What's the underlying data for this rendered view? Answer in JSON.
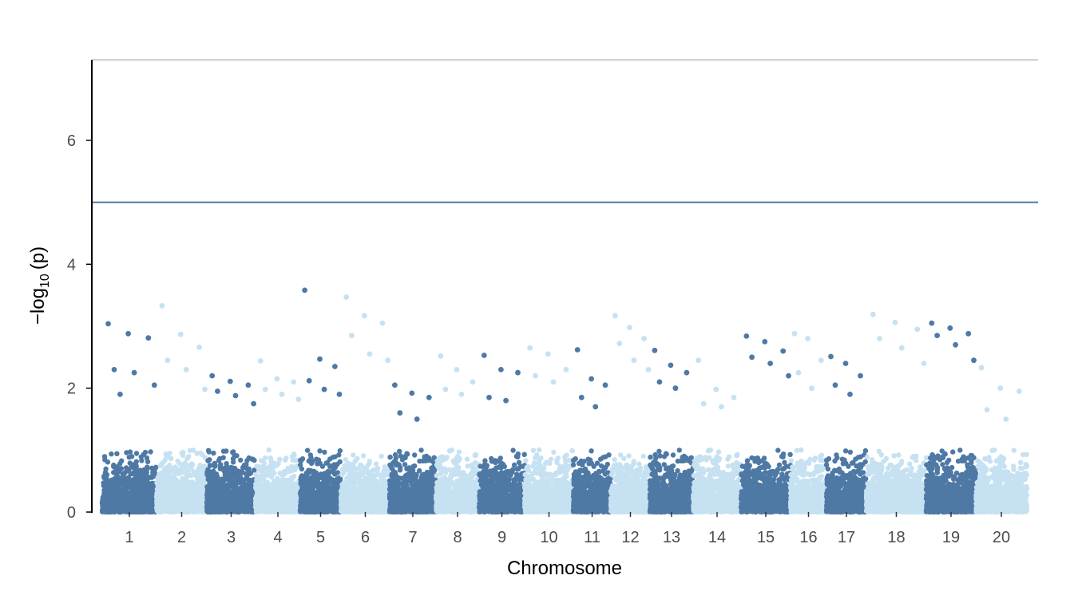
{
  "chart_data": {
    "type": "scatter",
    "subtype": "manhattan",
    "title": "",
    "xlabel": "Chromosome",
    "ylabel": {
      "prefix": "−log",
      "subscript": "10",
      "suffix": "(p)"
    },
    "ylim": [
      0,
      7.3
    ],
    "yticks": [
      0,
      2,
      4,
      6
    ],
    "threshold": 5,
    "grid": false,
    "legend": "none",
    "colors": {
      "dark": "#4f79a5",
      "light": "#c6e1f2",
      "threshold_line": "#4f79a5",
      "top_rule": "#b3b3b3",
      "axis": "#000000",
      "tick_label": "#4d4d4d"
    },
    "chromosomes": [
      {
        "label": "1",
        "peak": 3.04,
        "tops": [
          2.88,
          2.81,
          2.3,
          2.25,
          2.05,
          1.9
        ]
      },
      {
        "label": "2",
        "peak": 3.33,
        "tops": [
          2.87,
          2.66,
          2.45,
          2.3,
          1.98
        ]
      },
      {
        "label": "3",
        "peak": 2.2,
        "tops": [
          2.11,
          2.05,
          1.95,
          1.88,
          1.75
        ]
      },
      {
        "label": "4",
        "peak": 2.44,
        "tops": [
          2.15,
          2.1,
          1.98,
          1.9,
          1.82
        ]
      },
      {
        "label": "5",
        "peak": 3.58,
        "tops": [
          2.47,
          2.35,
          2.12,
          1.98,
          1.9
        ]
      },
      {
        "label": "6",
        "peak": 3.47,
        "tops": [
          3.17,
          3.05,
          2.85,
          2.55,
          2.45
        ]
      },
      {
        "label": "7",
        "peak": 2.05,
        "tops": [
          1.92,
          1.85,
          1.6,
          1.5
        ]
      },
      {
        "label": "8",
        "peak": 2.52,
        "tops": [
          2.3,
          2.1,
          1.98,
          1.9
        ]
      },
      {
        "label": "9",
        "peak": 2.53,
        "tops": [
          2.3,
          2.25,
          1.85,
          1.8
        ]
      },
      {
        "label": "10",
        "peak": 2.65,
        "tops": [
          2.55,
          2.3,
          2.2,
          2.1
        ]
      },
      {
        "label": "11",
        "peak": 2.62,
        "tops": [
          2.15,
          2.05,
          1.85,
          1.7
        ]
      },
      {
        "label": "12",
        "peak": 3.17,
        "tops": [
          2.98,
          2.8,
          2.72,
          2.45,
          2.3
        ]
      },
      {
        "label": "13",
        "peak": 2.61,
        "tops": [
          2.37,
          2.25,
          2.1,
          2.0
        ]
      },
      {
        "label": "14",
        "peak": 2.45,
        "tops": [
          1.98,
          1.85,
          1.75,
          1.7
        ]
      },
      {
        "label": "15",
        "peak": 2.84,
        "tops": [
          2.75,
          2.6,
          2.5,
          2.4,
          2.2
        ]
      },
      {
        "label": "16",
        "peak": 2.88,
        "tops": [
          2.8,
          2.45,
          2.25,
          2.0
        ]
      },
      {
        "label": "17",
        "peak": 2.51,
        "tops": [
          2.4,
          2.2,
          2.05,
          1.9
        ]
      },
      {
        "label": "18",
        "peak": 3.19,
        "tops": [
          3.06,
          2.95,
          2.8,
          2.65,
          2.4
        ]
      },
      {
        "label": "19",
        "peak": 3.05,
        "tops": [
          2.97,
          2.88,
          2.85,
          2.7,
          2.45
        ]
      },
      {
        "label": "20",
        "peak": 2.33,
        "tops": [
          2.0,
          1.95,
          1.65,
          1.5
        ]
      }
    ]
  }
}
